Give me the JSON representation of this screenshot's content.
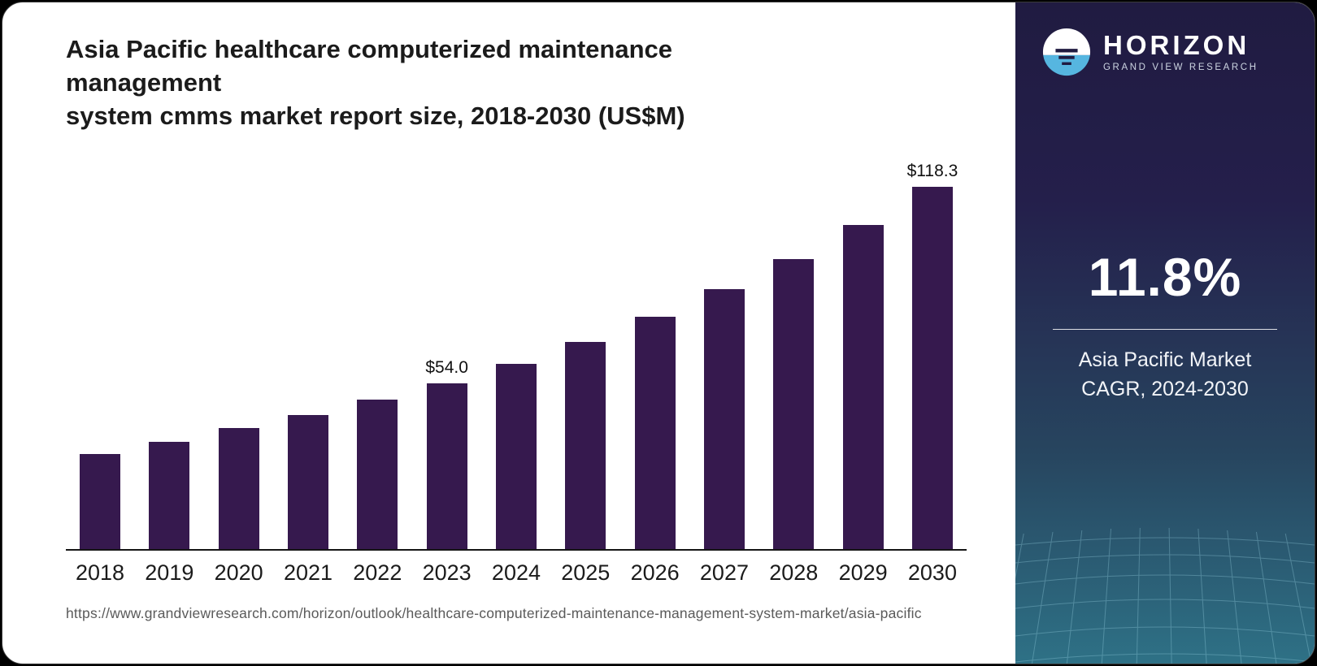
{
  "title": {
    "line1": "Asia Pacific healthcare computerized maintenance management",
    "line2": "system cmms market report size, 2018-2030 (US$M)"
  },
  "source": {
    "url": "https://www.grandviewresearch.com/horizon/outlook/healthcare-computerized-maintenance-management-system-market/asia-pacific"
  },
  "chart_data": {
    "type": "bar",
    "title": "Asia Pacific healthcare computerized maintenance management system cmms market report size, 2018-2030 (US$M)",
    "categories": [
      "2018",
      "2019",
      "2020",
      "2021",
      "2022",
      "2023",
      "2024",
      "2025",
      "2026",
      "2027",
      "2028",
      "2029",
      "2030"
    ],
    "values": [
      31.0,
      35.0,
      39.5,
      43.8,
      48.9,
      54.0,
      60.4,
      67.6,
      75.8,
      84.9,
      94.8,
      105.8,
      118.3
    ],
    "data_labels": {
      "2023": "$54.0",
      "2030": "$118.3"
    },
    "unit": "US$M",
    "xlabel": "",
    "ylabel": "",
    "ylim": [
      0,
      125
    ],
    "grid": false,
    "legend": "none",
    "bar_color": "#36194e"
  },
  "sidebar": {
    "brand": {
      "name": "HORIZON",
      "subtitle": "GRAND VIEW RESEARCH"
    },
    "stat": {
      "value": "11.8%",
      "caption_line1": "Asia Pacific Market",
      "caption_line2": "CAGR, 2024-2030"
    },
    "colors": {
      "gradient_top": "#201b41",
      "gradient_bottom": "#2e7186",
      "accent_blue": "#56b6e0"
    }
  }
}
